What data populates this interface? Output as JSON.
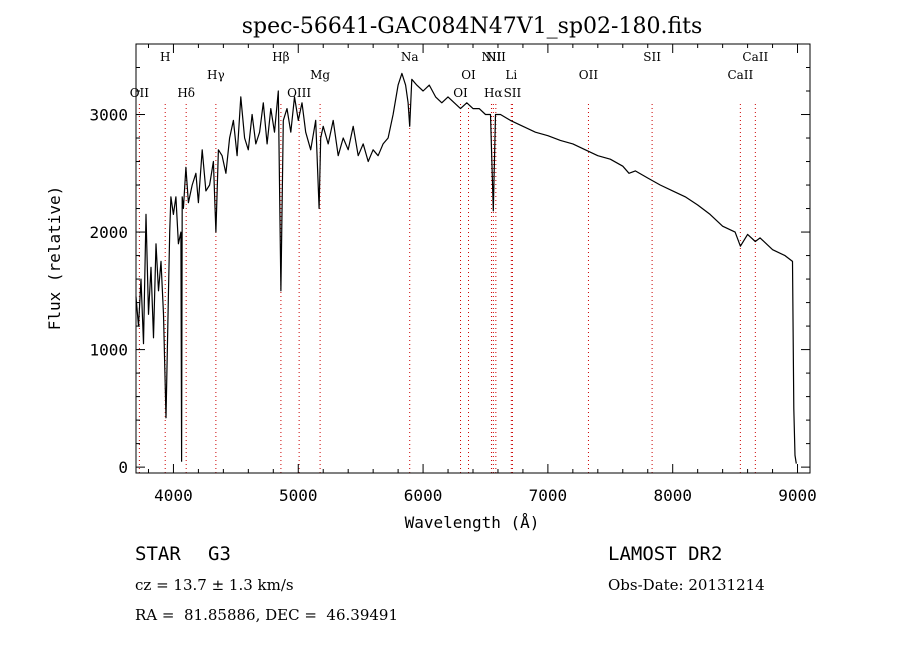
{
  "chart_data": {
    "type": "line",
    "title": "spec-56641-GAC084N47V1_sp02-180.fits",
    "xlabel": "Wavelength (Å)",
    "ylabel": "Flux (relative)",
    "xlim": [
      3700,
      9100
    ],
    "ylim": [
      -50,
      3600
    ],
    "x_ticks": [
      4000,
      5000,
      6000,
      7000,
      8000,
      9000
    ],
    "y_ticks": [
      0,
      1000,
      2000,
      3000
    ],
    "grid": false,
    "series": [
      {
        "x": [
          3700,
          3720,
          3740,
          3760,
          3780,
          3800,
          3820,
          3840,
          3860,
          3880,
          3900,
          3920,
          3940,
          3960,
          3970,
          3980,
          4000,
          4020,
          4040,
          4060,
          4065,
          4070,
          4080,
          4100,
          4120,
          4150,
          4180,
          4200,
          4230,
          4260,
          4290,
          4320,
          4340,
          4360,
          4390,
          4420,
          4450,
          4480,
          4510,
          4540,
          4570,
          4600,
          4630,
          4660,
          4690,
          4720,
          4750,
          4780,
          4810,
          4840,
          4861,
          4880,
          4910,
          4940,
          4970,
          5000,
          5030,
          5060,
          5100,
          5140,
          5167,
          5180,
          5200,
          5240,
          5280,
          5320,
          5360,
          5400,
          5440,
          5480,
          5520,
          5560,
          5600,
          5640,
          5680,
          5720,
          5760,
          5800,
          5830,
          5860,
          5880,
          5893,
          5910,
          5950,
          6000,
          6050,
          6100,
          6150,
          6200,
          6250,
          6300,
          6350,
          6400,
          6450,
          6500,
          6540,
          6563,
          6580,
          6620,
          6700,
          6800,
          6900,
          7000,
          7100,
          7200,
          7300,
          7400,
          7500,
          7600,
          7650,
          7700,
          7800,
          7900,
          8000,
          8100,
          8200,
          8300,
          8400,
          8500,
          8542,
          8600,
          8662,
          8700,
          8800,
          8900,
          8960,
          8970,
          8980,
          8990
        ],
        "values": [
          1450,
          1200,
          1600,
          1050,
          2150,
          1300,
          1700,
          1100,
          1900,
          1500,
          1750,
          1300,
          420,
          1500,
          2000,
          2300,
          2150,
          2300,
          1900,
          2000,
          50,
          2300,
          2200,
          2550,
          2250,
          2400,
          2500,
          2250,
          2700,
          2350,
          2400,
          2600,
          2000,
          2700,
          2650,
          2500,
          2800,
          2950,
          2650,
          3150,
          2800,
          2700,
          3000,
          2750,
          2850,
          3100,
          2750,
          3050,
          2850,
          3200,
          1500,
          2950,
          3050,
          2850,
          3150,
          2950,
          3100,
          2850,
          2700,
          2950,
          2200,
          2800,
          2900,
          2750,
          2950,
          2650,
          2800,
          2700,
          2900,
          2650,
          2750,
          2600,
          2700,
          2650,
          2750,
          2800,
          3000,
          3250,
          3350,
          3250,
          3100,
          2900,
          3300,
          3250,
          3200,
          3250,
          3150,
          3100,
          3150,
          3100,
          3050,
          3100,
          3050,
          3050,
          3000,
          3000,
          2180,
          3000,
          3000,
          2950,
          2900,
          2850,
          2820,
          2780,
          2750,
          2700,
          2650,
          2620,
          2560,
          2500,
          2520,
          2460,
          2400,
          2350,
          2300,
          2230,
          2150,
          2050,
          2000,
          1880,
          1980,
          1920,
          1950,
          1850,
          1800,
          1750,
          500,
          100,
          30
        ]
      }
    ],
    "lines": [
      {
        "label": "OII",
        "x": 3727,
        "row": 3
      },
      {
        "label": "H",
        "x": 3934,
        "row": 1
      },
      {
        "label": "Hδ",
        "x": 4102,
        "row": 3
      },
      {
        "label": "Hγ",
        "x": 4340,
        "row": 2
      },
      {
        "label": "Hβ",
        "x": 4861,
        "row": 1
      },
      {
        "label": "OIII",
        "x": 5007,
        "row": 3
      },
      {
        "label": "Mg",
        "x": 5175,
        "row": 2
      },
      {
        "label": "Na",
        "x": 5893,
        "row": 1
      },
      {
        "label": "OI",
        "x": 6300,
        "row": 3
      },
      {
        "label": "OI",
        "x": 6364,
        "row": 2
      },
      {
        "label": "NII",
        "x": 6548,
        "row": 1
      },
      {
        "label": "Hα",
        "x": 6563,
        "row": 3
      },
      {
        "label": "NII",
        "x": 6583,
        "row": 1
      },
      {
        "label": "Li",
        "x": 6707,
        "row": 2
      },
      {
        "label": "SII",
        "x": 6716,
        "row": 3
      },
      {
        "label": "OII",
        "x": 7325,
        "row": 2
      },
      {
        "label": "SII",
        "x": 7835,
        "row": 1
      },
      {
        "label": "CaII",
        "x": 8542,
        "row": 2
      },
      {
        "label": "CaII",
        "x": 8662,
        "row": 1
      }
    ],
    "line_color": "#cc0000"
  },
  "info": {
    "class_label": "STAR",
    "subclass": "G3",
    "survey": "LAMOST DR2",
    "cz": "cz = 13.7 ± 1.3 km/s",
    "obs_date": "Obs-Date: 20131214",
    "coords": "RA =  81.85886, DEC =  46.39491"
  }
}
